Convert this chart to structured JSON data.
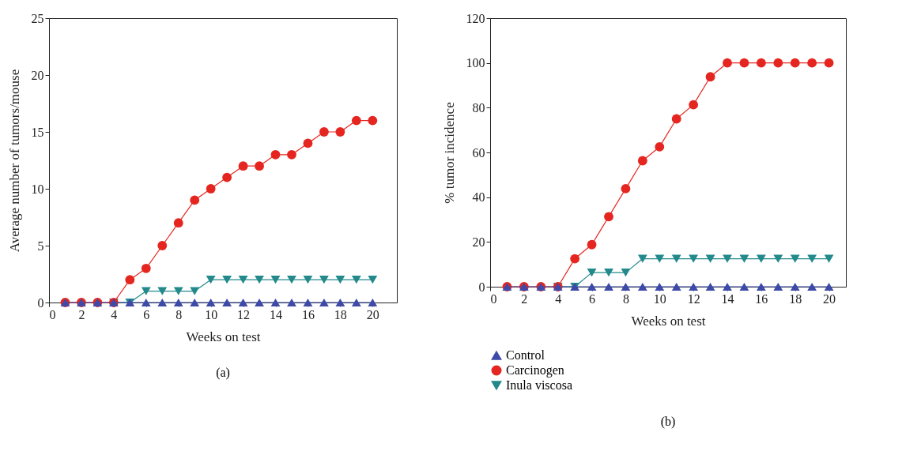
{
  "chart_data": [
    {
      "type": "line",
      "xlabel": "Weeks on test",
      "ylabel": "Average number of tumors/mouse",
      "annotations": [
        "(a)"
      ],
      "x": [
        1,
        2,
        3,
        4,
        5,
        6,
        7,
        8,
        9,
        10,
        11,
        12,
        13,
        14,
        15,
        16,
        17,
        18,
        19,
        20
      ],
      "xlim": [
        0,
        21.5
      ],
      "xticks": [
        0,
        2,
        4,
        6,
        8,
        10,
        12,
        14,
        16,
        18,
        20
      ],
      "ylim": [
        0,
        25
      ],
      "yticks": [
        0,
        5,
        10,
        15,
        20,
        25
      ],
      "grid": false,
      "legend": false,
      "series": [
        {
          "color": "#3d4aa8",
          "marker": "triangle",
          "values": [
            0,
            0,
            0,
            0,
            0,
            0,
            0,
            0,
            0,
            0,
            0,
            0,
            0,
            0,
            0,
            0,
            0,
            0,
            0,
            0
          ]
        },
        {
          "color": "#e52620",
          "marker": "circle",
          "values": [
            0,
            0,
            0,
            0,
            2,
            3,
            5,
            7,
            9,
            10,
            11,
            12,
            12,
            13,
            13,
            14,
            15,
            15,
            16,
            16
          ]
        },
        {
          "color": "#23898b",
          "marker": "triangle-down",
          "values": [
            null,
            null,
            null,
            0,
            0,
            1,
            1,
            1,
            1,
            2,
            2,
            2,
            2,
            2,
            2,
            2,
            2,
            2,
            2,
            2
          ]
        }
      ]
    },
    {
      "type": "line",
      "xlabel": "Weeks on test",
      "ylabel": "% tumor incidence",
      "annotations": [
        "(b)"
      ],
      "x": [
        1,
        2,
        3,
        4,
        5,
        6,
        7,
        8,
        9,
        10,
        11,
        12,
        13,
        14,
        15,
        16,
        17,
        18,
        19,
        20
      ],
      "xlim": [
        0,
        21
      ],
      "xticks": [
        0,
        2,
        4,
        6,
        8,
        10,
        12,
        14,
        16,
        18,
        20
      ],
      "ylim": [
        0,
        120
      ],
      "yticks": [
        0,
        20,
        40,
        60,
        80,
        100,
        120
      ],
      "grid": false,
      "legend": "bottom left",
      "series": [
        {
          "name": "Control",
          "color": "#3d4aa8",
          "marker": "triangle",
          "values": [
            0,
            0,
            0,
            0,
            0,
            0,
            0,
            0,
            0,
            0,
            0,
            0,
            0,
            0,
            0,
            0,
            0,
            0,
            0,
            0
          ]
        },
        {
          "name": "Carcinogen",
          "color": "#e52620",
          "marker": "circle",
          "values": [
            0,
            0,
            0,
            0,
            12.5,
            18.8,
            31.3,
            43.8,
            56.3,
            62.5,
            75,
            81.3,
            93.8,
            100,
            100,
            100,
            100,
            100,
            100,
            100
          ]
        },
        {
          "name": "Inula viscosa",
          "color": "#23898b",
          "marker": "triangle-down",
          "values": [
            null,
            null,
            null,
            0,
            0,
            6.3,
            6.3,
            6.3,
            12.5,
            12.5,
            12.5,
            12.5,
            12.5,
            12.5,
            12.5,
            12.5,
            12.5,
            12.5,
            12.5,
            12.5
          ]
        }
      ]
    }
  ]
}
